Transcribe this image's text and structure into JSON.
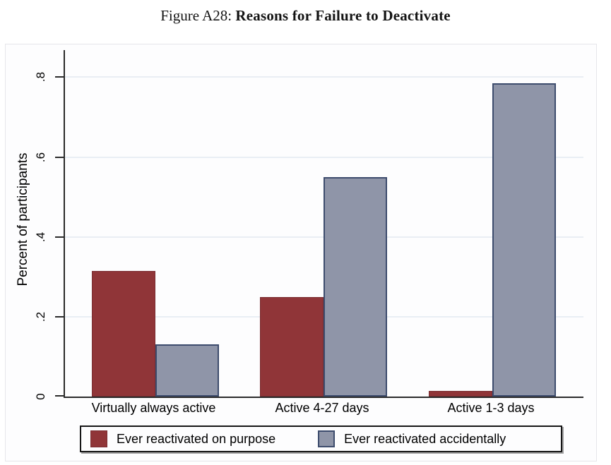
{
  "title": {
    "prefix": "Figure A28:",
    "main": "Reasons for Failure to Deactivate"
  },
  "chart_data": {
    "type": "bar",
    "title": "Figure A28: Reasons for Failure to Deactivate",
    "categories": [
      "Virtually always active",
      "Active 4-27 days",
      "Active 1-3 days"
    ],
    "series": [
      {
        "name": "Ever reactivated on purpose",
        "values": [
          0.315,
          0.25,
          0.015
        ],
        "fill": "#903538",
        "border": "#7a2d31"
      },
      {
        "name": "Ever reactivated accidentally",
        "values": [
          0.13,
          0.55,
          0.785
        ],
        "fill": "#8F95A8",
        "border": "#3D4C6D"
      }
    ],
    "ylabel": "Percent of participants",
    "xlabel": "",
    "ytick_labels": [
      "0",
      ".2",
      ".4",
      ".6",
      ".8"
    ],
    "ytick_values": [
      0,
      0.2,
      0.4,
      0.6,
      0.8
    ],
    "ylim": [
      0,
      0.868
    ],
    "grid": true,
    "gridline_color": "#E9EEF4",
    "axis_color": "#2b2b2b",
    "legend_position": "bottom"
  }
}
